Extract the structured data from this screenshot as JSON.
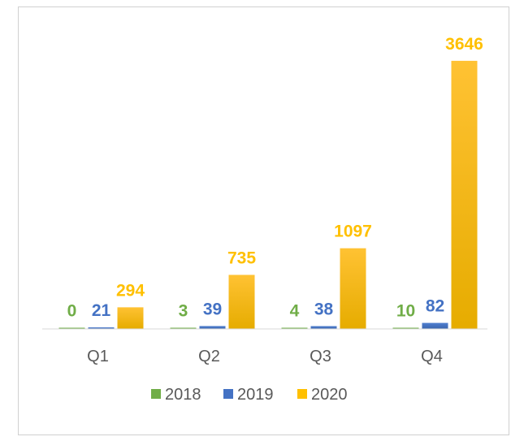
{
  "chart_data": {
    "type": "bar",
    "title": "",
    "xlabel": "",
    "ylabel": "",
    "categories": [
      "Q1",
      "Q2",
      "Q3",
      "Q4"
    ],
    "series": [
      {
        "name": "2018",
        "values": [
          0,
          3,
          4,
          10
        ],
        "color": "#70ad47"
      },
      {
        "name": "2019",
        "values": [
          21,
          39,
          38,
          82
        ],
        "color": "#4472c4"
      },
      {
        "name": "2020",
        "values": [
          294,
          735,
          1097,
          3646
        ],
        "color": "#ffc000"
      }
    ],
    "ylim": [
      0,
      3700
    ],
    "grid": false,
    "legend": "bottom",
    "data_labels": true,
    "y_axis_visible": false
  }
}
